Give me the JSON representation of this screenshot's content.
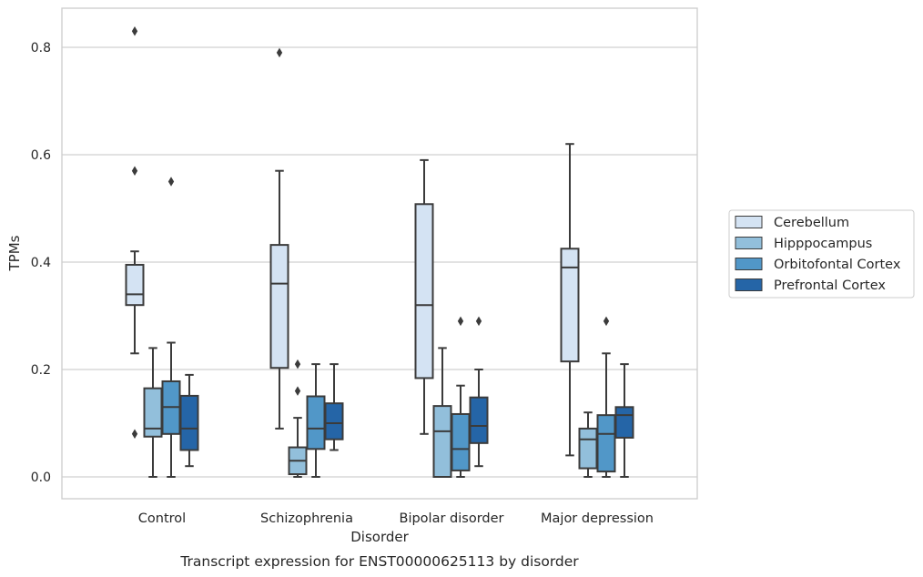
{
  "chart_data": {
    "type": "box",
    "xlabel": "Disorder",
    "ylabel": "TPMs",
    "caption": "Transcript expression for ENST00000625113 by disorder",
    "ylim": [
      -0.04,
      0.873
    ],
    "yticks": [
      "0.0",
      "0.2",
      "0.4",
      "0.6",
      "0.8"
    ],
    "grid": "horizontal",
    "legend_position": "right",
    "categories": [
      "Control",
      "Schizophrenia",
      "Bipolar disorder",
      "Major depression"
    ],
    "series": [
      {
        "name": "Cerebellum",
        "color": "#d4e3f3",
        "boxes": [
          {
            "whislo": 0.23,
            "q1": 0.32,
            "med": 0.34,
            "q3": 0.395,
            "whishi": 0.42,
            "fliers": [
              0.83,
              0.57,
              0.08
            ]
          },
          {
            "whislo": 0.09,
            "q1": 0.203,
            "med": 0.36,
            "q3": 0.432,
            "whishi": 0.57,
            "fliers": [
              0.79
            ]
          },
          {
            "whislo": 0.08,
            "q1": 0.184,
            "med": 0.32,
            "q3": 0.508,
            "whishi": 0.59,
            "fliers": []
          },
          {
            "whislo": 0.04,
            "q1": 0.215,
            "med": 0.39,
            "q3": 0.425,
            "whishi": 0.62,
            "fliers": []
          }
        ]
      },
      {
        "name": "Hipppocampus",
        "color": "#92bfdb",
        "boxes": [
          {
            "whislo": 0.0,
            "q1": 0.075,
            "med": 0.09,
            "q3": 0.165,
            "whishi": 0.24,
            "fliers": []
          },
          {
            "whislo": 0.0,
            "q1": 0.005,
            "med": 0.03,
            "q3": 0.055,
            "whishi": 0.11,
            "fliers": [
              0.21,
              0.16
            ]
          },
          {
            "whislo": 0.0,
            "q1": 0.0,
            "med": 0.085,
            "q3": 0.132,
            "whishi": 0.24,
            "fliers": []
          },
          {
            "whislo": 0.0,
            "q1": 0.016,
            "med": 0.07,
            "q3": 0.09,
            "whishi": 0.12,
            "fliers": []
          }
        ]
      },
      {
        "name": "Orbitofontal Cortex",
        "color": "#5197c8",
        "boxes": [
          {
            "whislo": 0.0,
            "q1": 0.08,
            "med": 0.13,
            "q3": 0.178,
            "whishi": 0.25,
            "fliers": [
              0.55
            ]
          },
          {
            "whislo": 0.0,
            "q1": 0.052,
            "med": 0.09,
            "q3": 0.15,
            "whishi": 0.21,
            "fliers": []
          },
          {
            "whislo": 0.0,
            "q1": 0.012,
            "med": 0.052,
            "q3": 0.117,
            "whishi": 0.17,
            "fliers": [
              0.29
            ]
          },
          {
            "whislo": 0.0,
            "q1": 0.01,
            "med": 0.08,
            "q3": 0.115,
            "whishi": 0.23,
            "fliers": [
              0.29
            ]
          }
        ]
      },
      {
        "name": "Prefrontal Cortex",
        "color": "#2565a7",
        "boxes": [
          {
            "whislo": 0.02,
            "q1": 0.05,
            "med": 0.09,
            "q3": 0.151,
            "whishi": 0.19,
            "fliers": []
          },
          {
            "whislo": 0.05,
            "q1": 0.07,
            "med": 0.1,
            "q3": 0.137,
            "whishi": 0.21,
            "fliers": []
          },
          {
            "whislo": 0.02,
            "q1": 0.063,
            "med": 0.095,
            "q3": 0.148,
            "whishi": 0.2,
            "fliers": [
              0.29
            ]
          },
          {
            "whislo": 0.0,
            "q1": 0.073,
            "med": 0.115,
            "q3": 0.13,
            "whishi": 0.21,
            "fliers": []
          }
        ]
      }
    ]
  }
}
